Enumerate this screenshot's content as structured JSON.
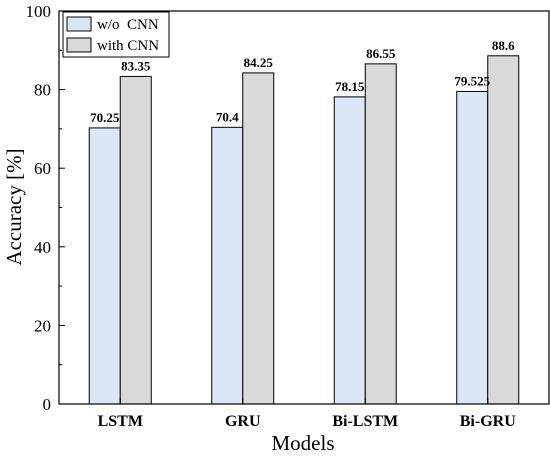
{
  "chart_data": {
    "type": "bar",
    "xlabel": "Models",
    "ylabel": "Accuracy [%]",
    "ylim": [
      0,
      100
    ],
    "yticks": [
      0,
      20,
      40,
      60,
      80,
      100
    ],
    "categories": [
      "LSTM",
      "GRU",
      "Bi-LSTM",
      "Bi-GRU"
    ],
    "series": [
      {
        "name": "w/o  CNN",
        "color": "#dbe6f7",
        "values": [
          70.25,
          70.4,
          78.15,
          79.525
        ],
        "labels": [
          "70.25",
          "70.4",
          "78.15",
          "79.525"
        ]
      },
      {
        "name": "with CNN",
        "color": "#d9d9d9",
        "values": [
          83.35,
          84.25,
          86.55,
          88.6
        ],
        "labels": [
          "83.35",
          "84.25",
          "86.55",
          "88.6"
        ]
      }
    ],
    "legend_position": "top-left",
    "grid": false
  }
}
